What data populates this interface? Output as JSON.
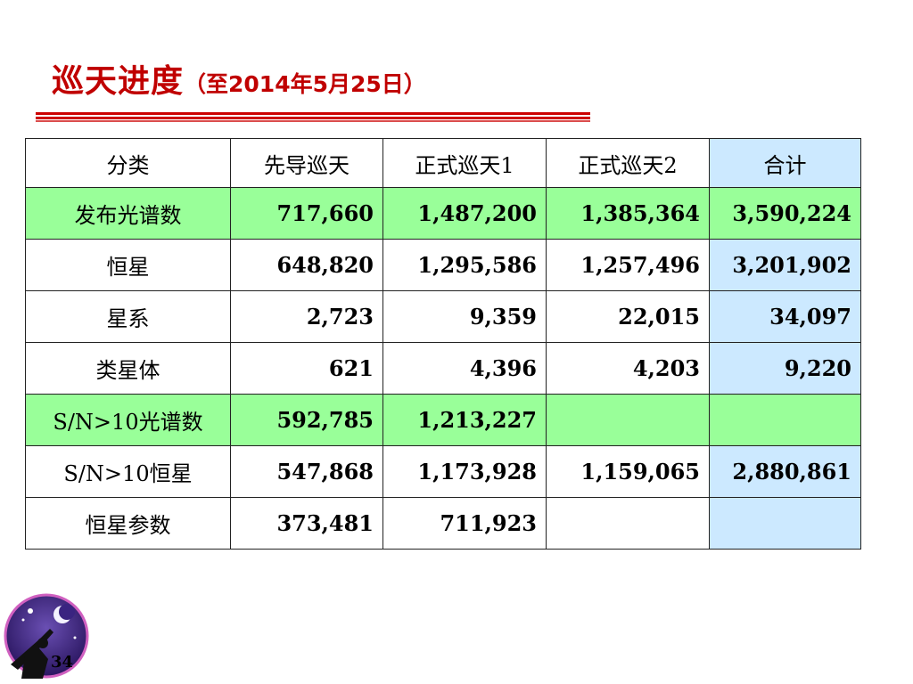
{
  "title": {
    "main": "巡天进度",
    "sub": "（至2014年5月25日）"
  },
  "colors": {
    "title": "#c00000",
    "rule": "#cc0000",
    "green_row": "#99ff99",
    "blue_col": "#cce9ff"
  },
  "table": {
    "headers": [
      "分类",
      "先导巡天",
      "正式巡天1",
      "正式巡天2",
      "合计"
    ],
    "rows": [
      {
        "label": "发布光谱数",
        "values": [
          "717,660",
          "1,487,200",
          "1,385,364",
          "3,590,224"
        ],
        "highlight": true
      },
      {
        "label": "恒星",
        "values": [
          "648,820",
          "1,295,586",
          "1,257,496",
          "3,201,902"
        ],
        "highlight": false
      },
      {
        "label": "星系",
        "values": [
          "2,723",
          "9,359",
          "22,015",
          "34,097"
        ],
        "highlight": false
      },
      {
        "label": "类星体",
        "values": [
          "621",
          "4,396",
          "4,203",
          "9,220"
        ],
        "highlight": false
      },
      {
        "label": "S/N>10光谱数",
        "values": [
          "592,785",
          "1,213,227",
          "",
          ""
        ],
        "highlight": true
      },
      {
        "label": "S/N>10恒星",
        "values": [
          "547,868",
          "1,173,928",
          "1,159,065",
          "2,880,861"
        ],
        "highlight": false
      },
      {
        "label": "恒星参数",
        "values": [
          "373,481",
          "711,923",
          "",
          ""
        ],
        "highlight": false
      }
    ]
  },
  "footer": {
    "page_number": "34",
    "logo_icon": "stargazer-telescope-icon"
  }
}
